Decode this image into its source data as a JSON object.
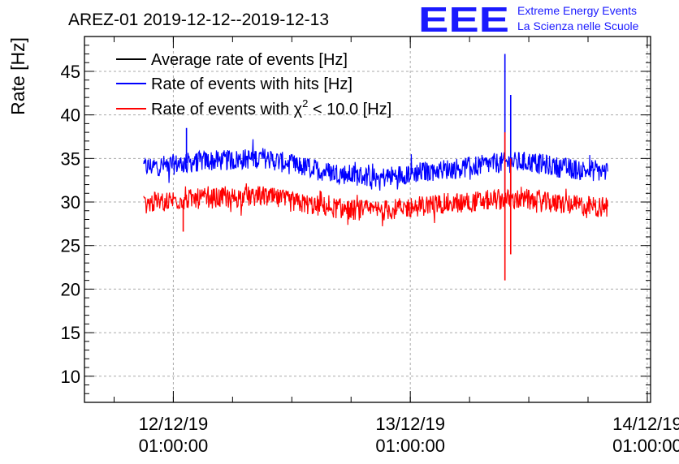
{
  "chart_data": {
    "type": "line",
    "title": "AREZ-01 2019-12-12--2019-12-13",
    "ylabel": "Rate [Hz]",
    "xlabel": "",
    "ylim": [
      7,
      49
    ],
    "x_range": [
      "2019-12-11 16:00",
      "2019-12-14 01:20"
    ],
    "y_ticks": [
      "10",
      "15",
      "20",
      "25",
      "30",
      "35",
      "40",
      "45"
    ],
    "x_ticks": [
      {
        "date": "12/12/19",
        "time": "01:00:00",
        "x": "2019-12-12 01:00"
      },
      {
        "date": "13/12/19",
        "time": "01:00:00",
        "x": "2019-12-13 01:00"
      },
      {
        "date": "14/12/19",
        "time": "01:00:00",
        "x": "2019-12-14 01:00"
      }
    ],
    "grid": true,
    "legend_position": "top-left",
    "series": [
      {
        "name": "Average rate of events [Hz]",
        "color": "#000000",
        "values": []
      },
      {
        "name": "Rate of events with hits [Hz]",
        "color": "#0000ff",
        "x": [
          "2019-12-11 22:00",
          "2019-12-12 01:00",
          "2019-12-12 04:00",
          "2019-12-12 07:00",
          "2019-12-12 10:00",
          "2019-12-12 13:00",
          "2019-12-12 16:00",
          "2019-12-12 19:00",
          "2019-12-12 22:00",
          "2019-12-13 01:00",
          "2019-12-13 04:00",
          "2019-12-13 07:00",
          "2019-12-13 10:00",
          "2019-12-13 13:00",
          "2019-12-13 16:00",
          "2019-12-13 19:00",
          "2019-12-13 21:00"
        ],
        "values": [
          34.0,
          34.3,
          34.7,
          34.8,
          35.1,
          34.3,
          33.6,
          33.1,
          32.8,
          33.3,
          33.7,
          34.0,
          34.5,
          34.6,
          34.0,
          33.6,
          33.5
        ],
        "spikes": [
          {
            "x": "2019-12-12 02:20",
            "y": 38.5
          },
          {
            "x": "2019-12-13 10:35",
            "y": 47.0
          },
          {
            "x": "2019-12-13 10:35",
            "y": 30.0
          },
          {
            "x": "2019-12-13 11:10",
            "y": 42.3
          },
          {
            "x": "2019-12-13 11:10",
            "y": 30.0
          }
        ]
      },
      {
        "name": "Rate of events with χ² < 10.0 [Hz]",
        "color": "#ff0000",
        "x": [
          "2019-12-11 22:00",
          "2019-12-12 01:00",
          "2019-12-12 04:00",
          "2019-12-12 07:00",
          "2019-12-12 10:00",
          "2019-12-12 13:00",
          "2019-12-12 16:00",
          "2019-12-12 19:00",
          "2019-12-12 22:00",
          "2019-12-13 01:00",
          "2019-12-13 04:00",
          "2019-12-13 07:00",
          "2019-12-13 10:00",
          "2019-12-13 13:00",
          "2019-12-13 16:00",
          "2019-12-13 19:00",
          "2019-12-13 21:00"
        ],
        "values": [
          29.8,
          30.2,
          30.4,
          30.5,
          30.7,
          30.0,
          29.5,
          29.1,
          29.0,
          29.4,
          29.8,
          30.0,
          30.3,
          30.2,
          29.8,
          29.5,
          29.4
        ],
        "spikes": [
          {
            "x": "2019-12-12 02:00",
            "y": 26.6
          },
          {
            "x": "2019-12-13 10:35",
            "y": 21.0
          },
          {
            "x": "2019-12-13 10:35",
            "y": 38.0
          },
          {
            "x": "2019-12-13 11:10",
            "y": 24.0
          },
          {
            "x": "2019-12-13 11:10",
            "y": 35.0
          }
        ]
      }
    ]
  },
  "legend": {
    "avg": "Average rate of events [Hz]",
    "hits": "Rate of events with hits [Hz]",
    "chi_prefix": "Rate of events with χ",
    "chi_sup": "2",
    "chi_suffix": " < 10.0 [Hz]"
  },
  "logo": {
    "letters": "EEE",
    "line1": "Extreme Energy Events",
    "line2": "La Scienza nelle Scuole"
  }
}
